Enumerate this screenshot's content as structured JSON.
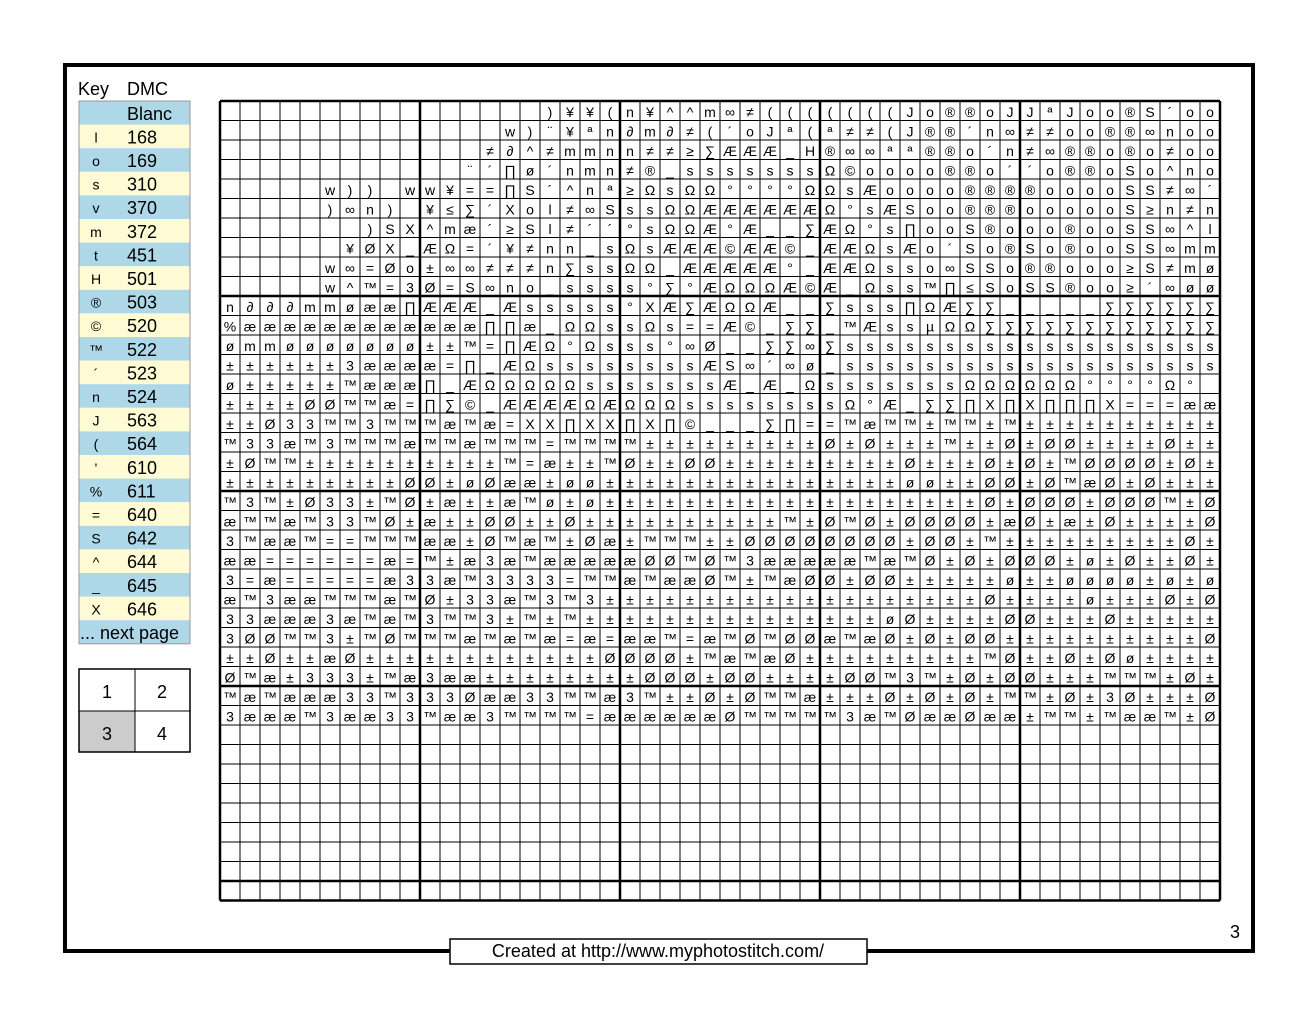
{
  "key": {
    "headers": [
      "Key",
      "DMC"
    ],
    "rows": [
      {
        "dmc": "Blanc"
      },
      {
        "symbol": "l",
        "dmc": "168"
      },
      {
        "symbol": "o",
        "dmc": "169"
      },
      {
        "symbol": "s",
        "dmc": "310"
      },
      {
        "symbol": "v",
        "dmc": "370"
      },
      {
        "symbol": "m",
        "dmc": "372"
      },
      {
        "symbol": "t",
        "dmc": "451"
      },
      {
        "symbol": "H",
        "dmc": "501"
      },
      {
        "symbol": "®",
        "dmc": "503"
      },
      {
        "symbol": "©",
        "dmc": "520"
      },
      {
        "symbol": "™",
        "dmc": "522"
      },
      {
        "symbol": "´",
        "dmc": "523"
      },
      {
        "symbol": "n",
        "dmc": "524"
      },
      {
        "symbol": "J",
        "dmc": "563"
      },
      {
        "symbol": "(",
        "dmc": "564"
      },
      {
        "symbol": "'",
        "dmc": "610"
      },
      {
        "symbol": "%",
        "dmc": "611"
      },
      {
        "symbol": "=",
        "dmc": "640"
      },
      {
        "symbol": "S",
        "dmc": "642"
      },
      {
        "symbol": "^",
        "dmc": "644"
      },
      {
        "symbol": "_",
        "dmc": "645"
      },
      {
        "symbol": "X",
        "dmc": "646"
      }
    ],
    "more": "... next page"
  },
  "pages": [
    "1",
    "2",
    "3",
    "4"
  ],
  "grid": {
    "rows": [
      "                )¥¥(n¥^^m∞≠(((((((Jo®®oJJªJoo®S´oo",
      "              w)¨¥ªn∂m∂≠(´oJª(ª≠≠(J®®´n∞≠≠oo®®∞noo",
      "             ≠∂^≠mmnn≠≠≥∑ÆÆÆ_H®∞∞ªª®®o´n≠∞®®o®o≠oo",
      "            ¨´∏ø´nmn≠®_sssssssΩ©oooo®®o´´o®®oSo^no",
      "     w)) ww¥==∏S´^nª≥ΩsΩΩ°°°°ΩΩsÆoooo®®®®ooooSS≠∞´",
      "     )∞n) ¥≤∑´Xol≠∞SssΩΩÆÆÆÆÆÆΩ°sÆSoo®®®oooooS≥n≠n",
      "       )SX^mæ´≥Sl≠´´°sΩΩÆ°Æ__∑ÆΩ°s∏ooS®ooo®ooSS∞^l",
      "      ¥ØX_ÆΩ=´¥≠nn_sΩsÆÆÆ©ÆÆ©_ÆÆΩsÆo´So®So®ooSS∞mm",
      "     w∞=Øo±∞∞≠≠≠n∑ssΩΩ_ÆÆÆÆÆ°_ÆÆΩsso∞SSo®®ooo≥S≠mø",
      "     w^™=3Ø=S∞no_ssss°∑°ÆΩΩΩÆ©Æ_Ωss™∏≤SoSS®oo≥´∞øø",
      "n∂∂∂mmøææ∏ÆÆÆ_Æsssss°XÆ∑ÆΩΩÆ__∑sss∏ΩÆ∑∑_____∑∑∑∑∑∑",
      "%ææææææææææææ∏∏æ_ΩΩssΩs==Æ©_∑∑_™ÆssµΩΩ∑∑∑∑∑∑∑∑∑∑∑∑",
      "ømmøøøøøøø±±™=∏ÆΩ°Ωsss°∞Ø__∑∑∞∑sssssssssssssssssss",
      "±±±±±±3ææææ=∏_ÆΩssssssssÆS∞´∞ø_sssssssssssssssssss",
      "ø±±±±±™æææ∏_ÆΩΩΩΩΩsssssssÆ_Æ_ΩsssssssΩΩΩΩΩΩ°°°°Ω°",
      "±±±±ØØ™™æ=∏∑©_ÆÆÆÆΩÆΩΩΩssssssssΩ°Æ_∑∑∏X∏X∏∏∏X===ææ",
      "±±Ø33™™3™™™æ™æ=XX∏XX∏X∏©___∑∏==™æ™™±™™±™±±±±±±±±±±",
      "™33æ™3™™™æ™™æ™™™=™™™™±±±±±±±±±Ø±Ø±±±™±±Ø±ØØ±±±±Ø±±",
      "±Ø™™±±±±±±±±±±™=æ±±™Ø±±ØØ±±±±±±±±±Ø±±±Ø±Ø±™ØØØØ±Ø±",
      "±±±±±±±±±ØØ±øØææ±øø±±±±±±±±±±±±±±±øø±±ØØ±Ø™æØ±Ø±±±",
      "™3™±Ø33±™Ø±æ±±æ™ø±ø±±±±±±±±±±±±±±±±±±±Ø±ØØØ±ØØØ™±Ø",
      "æ™™æ™33™Ø±æ±±ØØ±±Ø±±±±±±±±±±™±Ø™Ø±ØØØØ±æØ±æ±Ø±±±±Ø",
      "3™ææ™==™™™ææ±Ø™æ™±Øæ±™™™±±ØØØØØØØØ±ØØ±™±±±±±±±±±Ø±",
      "ææ======æ=™±æ3æ™æææææØØ™Ø™3æææææ™æ™Ø±Ø±ØØØ±ø±Ø±±Ø±",
      "3=æ=====æ33æ™3333=™™æ™ææØ™±™æØØ±ØØ±±±±±ø±±øøøø±ø±ø",
      "æ™3ææ™™™æ™Ø±33æ™3™3±±±±±±±±±±±±±±±±±±±Ø±±±±ø±±±Ø±Ø",
      "33æææ3æ™æ™3™™3±™±™±±±±±±±±±±±±±±±øØ±±±±ØØ±±±Ø±±±±±",
      "3ØØ™™3±™Ø™™™æ™æ™æ=æ=ææ™=æ™Ø™ØØæ™æØ±Ø±ØØ±±±±±±±±±±Ø",
      "±±Ø±±æØ±±±±±±±±±±±±ØØØØ±™æ™æØ±±±±±±±±±™Ø±±Ø±Øø±±±±",
      "Ø™æ±333±™æ3ææ±±±±±±±±ØØØ±ØØ±±±±ØØ™3™±Ø±ØØ±±±™™™±Ø±",
      "™æ™æææ33™333Øææ33™™æ3™±±Ø±Ø™™æ±±±Ø±Ø±Ø±™™±Ø±3Ø±±±Ø",
      "3æææ™3ææ33™ææ3™™™™=ææææææØ™™™™™3æ™ØææØææ±™™±™ææ™±Ø"
    ]
  },
  "footer": "Created at http://www.myphotostitch.com/",
  "page_number": "3"
}
